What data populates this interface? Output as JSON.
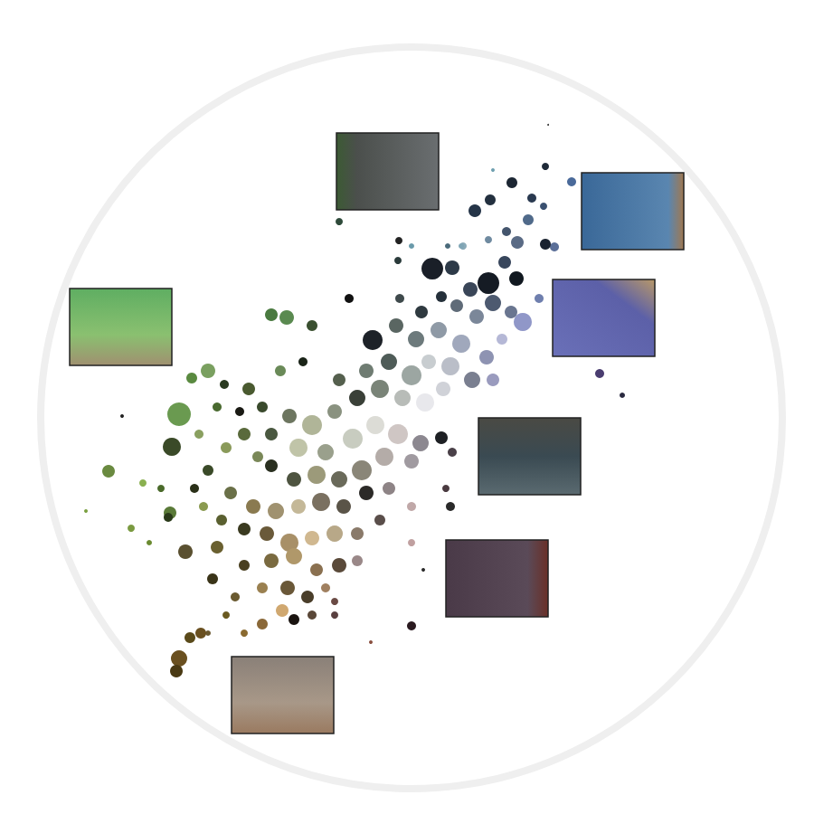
{
  "chart_data": {
    "type": "scatter",
    "x": [
      603,
      566,
      632,
      588,
      542,
      525,
      601,
      584,
      613,
      560,
      572,
      603,
      540,
      512,
      495,
      478,
      500,
      540,
      571,
      558,
      596,
      578,
      565,
      545,
      520,
      527,
      505,
      488,
      466,
      442,
      412,
      438,
      460,
      485,
      510,
      538,
      555,
      545,
      522,
      498,
      474,
      455,
      430,
      405,
      386,
      441,
      440,
      375,
      663,
      688,
      606,
      545,
      510,
      455,
      490,
      470,
      445,
      420,
      395,
      375,
      370,
      345,
      320,
      300,
      330,
      360,
      390,
      415,
      440,
      465,
      488,
      500,
      455,
      425,
      400,
      375,
      350,
      325,
      300,
      285,
      270,
      250,
      230,
      255,
      280,
      305,
      330,
      355,
      380,
      405,
      430,
      455,
      420,
      395,
      370,
      345,
      320,
      295,
      270,
      245,
      225,
      215,
      120,
      188,
      186,
      198,
      190,
      212,
      230,
      248,
      275,
      300,
      317,
      345,
      335,
      310,
      290,
      265,
      240,
      220,
      178,
      158,
      145,
      165,
      135,
      95,
      205,
      240,
      270,
      300,
      325,
      350,
      375,
      395,
      318,
      290,
      260,
      235,
      340,
      360,
      312,
      290,
      325,
      345,
      370,
      270,
      250,
      230,
      370,
      222,
      210,
      198,
      195,
      455,
      410,
      455,
      493,
      498,
      468
    ],
    "values": [
      716,
      698,
      699,
      681,
      679,
      667,
      672,
      657,
      627,
      644,
      632,
      630,
      635,
      628,
      628,
      603,
      604,
      587,
      592,
      610,
      570,
      544,
      555,
      565,
      580,
      550,
      562,
      572,
      555,
      570,
      524,
      540,
      525,
      535,
      520,
      505,
      525,
      480,
      480,
      495,
      500,
      485,
      500,
      490,
      570,
      634,
      612,
      655,
      487,
      463,
      762,
      712,
      628,
      628,
      470,
      455,
      460,
      470,
      460,
      480,
      445,
      430,
      440,
      420,
      405,
      400,
      415,
      430,
      420,
      410,
      416,
      400,
      390,
      395,
      380,
      370,
      375,
      370,
      385,
      395,
      420,
      405,
      380,
      355,
      340,
      335,
      340,
      345,
      340,
      355,
      360,
      340,
      325,
      310,
      310,
      305,
      300,
      310,
      315,
      325,
      340,
      360,
      379,
      333,
      328,
      442,
      406,
      482,
      490,
      475,
      470,
      552,
      549,
      540,
      500,
      490,
      450,
      445,
      450,
      420,
      360,
      366,
      316,
      300,
      440,
      335,
      290,
      295,
      275,
      280,
      285,
      270,
      275,
      280,
      250,
      250,
      240,
      260,
      240,
      250,
      225,
      210,
      215,
      220,
      235,
      200,
      220,
      200,
      220,
      200,
      195,
      172,
      158,
      208,
      190,
      300,
      360,
      340,
      270
    ],
    "sizes": [
      8,
      12,
      10,
      10,
      12,
      14,
      8,
      12,
      10,
      10,
      14,
      12,
      8,
      8,
      6,
      24,
      16,
      24,
      16,
      14,
      10,
      20,
      14,
      18,
      16,
      16,
      14,
      12,
      14,
      10,
      22,
      16,
      18,
      18,
      20,
      16,
      12,
      14,
      18,
      20,
      16,
      22,
      18,
      16,
      10,
      8,
      8,
      8,
      10,
      6,
      2,
      4,
      6,
      6,
      16,
      20,
      18,
      20,
      18,
      14,
      16,
      22,
      16,
      14,
      20,
      18,
      22,
      20,
      22,
      18,
      14,
      10,
      16,
      20,
      22,
      18,
      20,
      16,
      14,
      12,
      14,
      12,
      12,
      14,
      16,
      18,
      16,
      20,
      16,
      16,
      14,
      10,
      12,
      14,
      18,
      16,
      20,
      16,
      14,
      12,
      10,
      10,
      14,
      14,
      10,
      26,
      20,
      12,
      16,
      10,
      14,
      14,
      16,
      12,
      10,
      12,
      12,
      10,
      10,
      10,
      8,
      8,
      8,
      6,
      4,
      4,
      16,
      14,
      12,
      16,
      18,
      14,
      16,
      12,
      16,
      12,
      10,
      12,
      14,
      10,
      14,
      12,
      12,
      10,
      8,
      8,
      8,
      6,
      8,
      12,
      12,
      18,
      14,
      10,
      4,
      8,
      8,
      10,
      4
    ],
    "colors": [
      "#1e2a38",
      "#1c2633",
      "#4a6a9a",
      "#2a3a50",
      "#23303f",
      "#253548",
      "#3a5070",
      "#506a8a",
      "#5b6f98",
      "#44556d",
      "#5a6b85",
      "#1a2230",
      "#6f8aa0",
      "#8aaab8",
      "#4a6a7a",
      "#1a1f28",
      "#2d3a48",
      "#151b24",
      "#111820",
      "#38465c",
      "#6f7fae",
      "#9097c8",
      "#6a7690",
      "#4d5a70",
      "#3a4658",
      "#7b8799",
      "#5f6b78",
      "#25303a",
      "#2f3a40",
      "#3f4a4c",
      "#1d2228",
      "#5a6662",
      "#6d7a7c",
      "#8f9aa6",
      "#a0a8bc",
      "#8e93b2",
      "#b5b8d6",
      "#9a9bbe",
      "#7a7f90",
      "#babec8",
      "#c8cdd0",
      "#9ca6a2",
      "#4f5c58",
      "#6f7c72",
      "#111111",
      "#222222",
      "#2a3a3a",
      "#2e4a3a",
      "#4a3d70",
      "#2a2a40",
      "#333333",
      "#6fa0b0",
      "#7fa5b5",
      "#6a9aaa",
      "#d0d2d8",
      "#e8e8ec",
      "#b8bcb8",
      "#7a8478",
      "#3a4038",
      "#55604e",
      "#8a9280",
      "#b0b598",
      "#6d7660",
      "#4a5840",
      "#c0c4a8",
      "#9aa08c",
      "#c8ccc0",
      "#dcdcd6",
      "#cfc6c4",
      "#8c8890",
      "#1e2024",
      "#4a4048",
      "#a09aa0",
      "#b4aca8",
      "#8a8678",
      "#6a6a5a",
      "#9c9a7a",
      "#4e5440",
      "#2a3020",
      "#7a8858",
      "#5a6a3c",
      "#8a9a5a",
      "#3a4a28",
      "#6a7048",
      "#8a7a50",
      "#a09270",
      "#c4b898",
      "#7a7060",
      "#5a5448",
      "#2c2a28",
      "#8e8486",
      "#c0a8a8",
      "#5a4e4a",
      "#8a7a6a",
      "#b8a888",
      "#d0b890",
      "#a89068",
      "#6a5a3a",
      "#3a3a20",
      "#5a6030",
      "#8a9a50",
      "#2a3018",
      "#6a8a40",
      "#5a7a38",
      "#2a3a1a",
      "#6a9a50",
      "#3a4a28",
      "#5a8a40",
      "#7aa060",
      "#2a3a20",
      "#4a5a30",
      "#4a7a40",
      "#5a8a50",
      "#3a5030",
      "#1a2418",
      "#6a8a58",
      "#3a4a2c",
      "#1a1a14",
      "#4a6a30",
      "#8aa060",
      "#4a6a2a",
      "#8ab050",
      "#7a9a40",
      "#6a8a30",
      "#222222",
      "#7aa040",
      "#5a5030",
      "#6a6030",
      "#4a4020",
      "#7a6a40",
      "#b0986a",
      "#8a7050",
      "#5a4a3a",
      "#9a8888",
      "#6a5838",
      "#9a8050",
      "#6a5a30",
      "#3a3418",
      "#4a3e2a",
      "#a08060",
      "#d0a870",
      "#8a6838",
      "#1a1410",
      "#5a4838",
      "#6a4a44",
      "#8a6a30",
      "#6a5a20",
      "#6a5830",
      "#5a4040",
      "#6a5020",
      "#5a4a1a",
      "#6a5020",
      "#4a3a14",
      "#2a1a20",
      "#8a5040",
      "#c0a0a0",
      "#4a3a40",
      "#2a2a2a",
      "#2a2a2a"
    ],
    "xlim": [
      0,
      900
    ],
    "ylim": [
      0,
      900
    ],
    "tick_labels": false,
    "grid": false
  }
}
